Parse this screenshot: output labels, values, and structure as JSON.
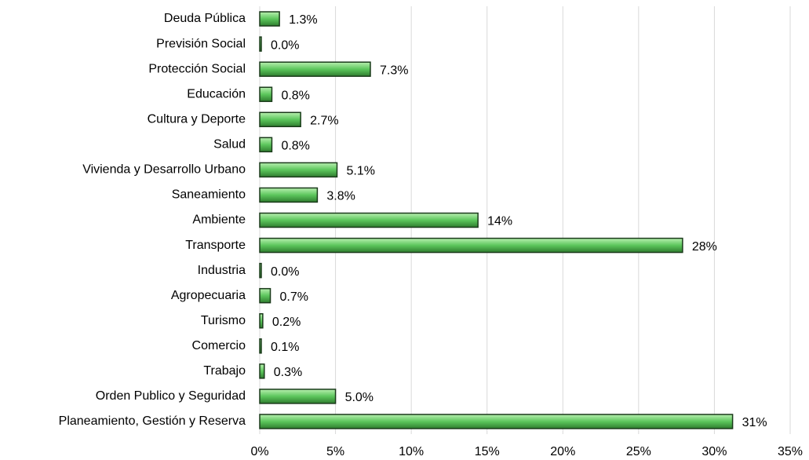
{
  "chart_data": {
    "type": "barh",
    "categories": [
      "Deuda Pública",
      "Previsión Social",
      "Protección Social",
      "Educación",
      "Cultura y Deporte",
      "Salud",
      "Vivienda y Desarrollo Urbano",
      "Saneamiento",
      "Ambiente",
      "Transporte",
      "Industria",
      "Agropecuaria",
      "Turismo",
      "Comercio",
      "Trabajo",
      "Orden Publico y Seguridad",
      "Planeamiento, Gestión y Reserva"
    ],
    "values": [
      1.3,
      0.0,
      7.3,
      0.8,
      2.7,
      0.8,
      5.1,
      3.8,
      14.4,
      27.9,
      0.0,
      0.7,
      0.2,
      0.1,
      0.3,
      5.0,
      31.2
    ],
    "value_labels": [
      "1.3%",
      "0.0%",
      "7.3%",
      "0.8%",
      "2.7%",
      "0.8%",
      "5.1%",
      "3.8%",
      "14%",
      "28%",
      "0.0%",
      "0.7%",
      "0.2%",
      "0.1%",
      "0.3%",
      "5.0%",
      "31%"
    ],
    "color": "#5cc65c",
    "xlim": [
      0,
      35
    ],
    "xticks": [
      {
        "value": 0,
        "label": "0%"
      },
      {
        "value": 5,
        "label": "5%"
      },
      {
        "value": 10,
        "label": "10%"
      },
      {
        "value": 15,
        "label": "15%"
      },
      {
        "value": 20,
        "label": "20%"
      },
      {
        "value": 25,
        "label": "25%"
      },
      {
        "value": 30,
        "label": "30%"
      },
      {
        "value": 35,
        "label": "35%"
      }
    ],
    "grid": true
  }
}
